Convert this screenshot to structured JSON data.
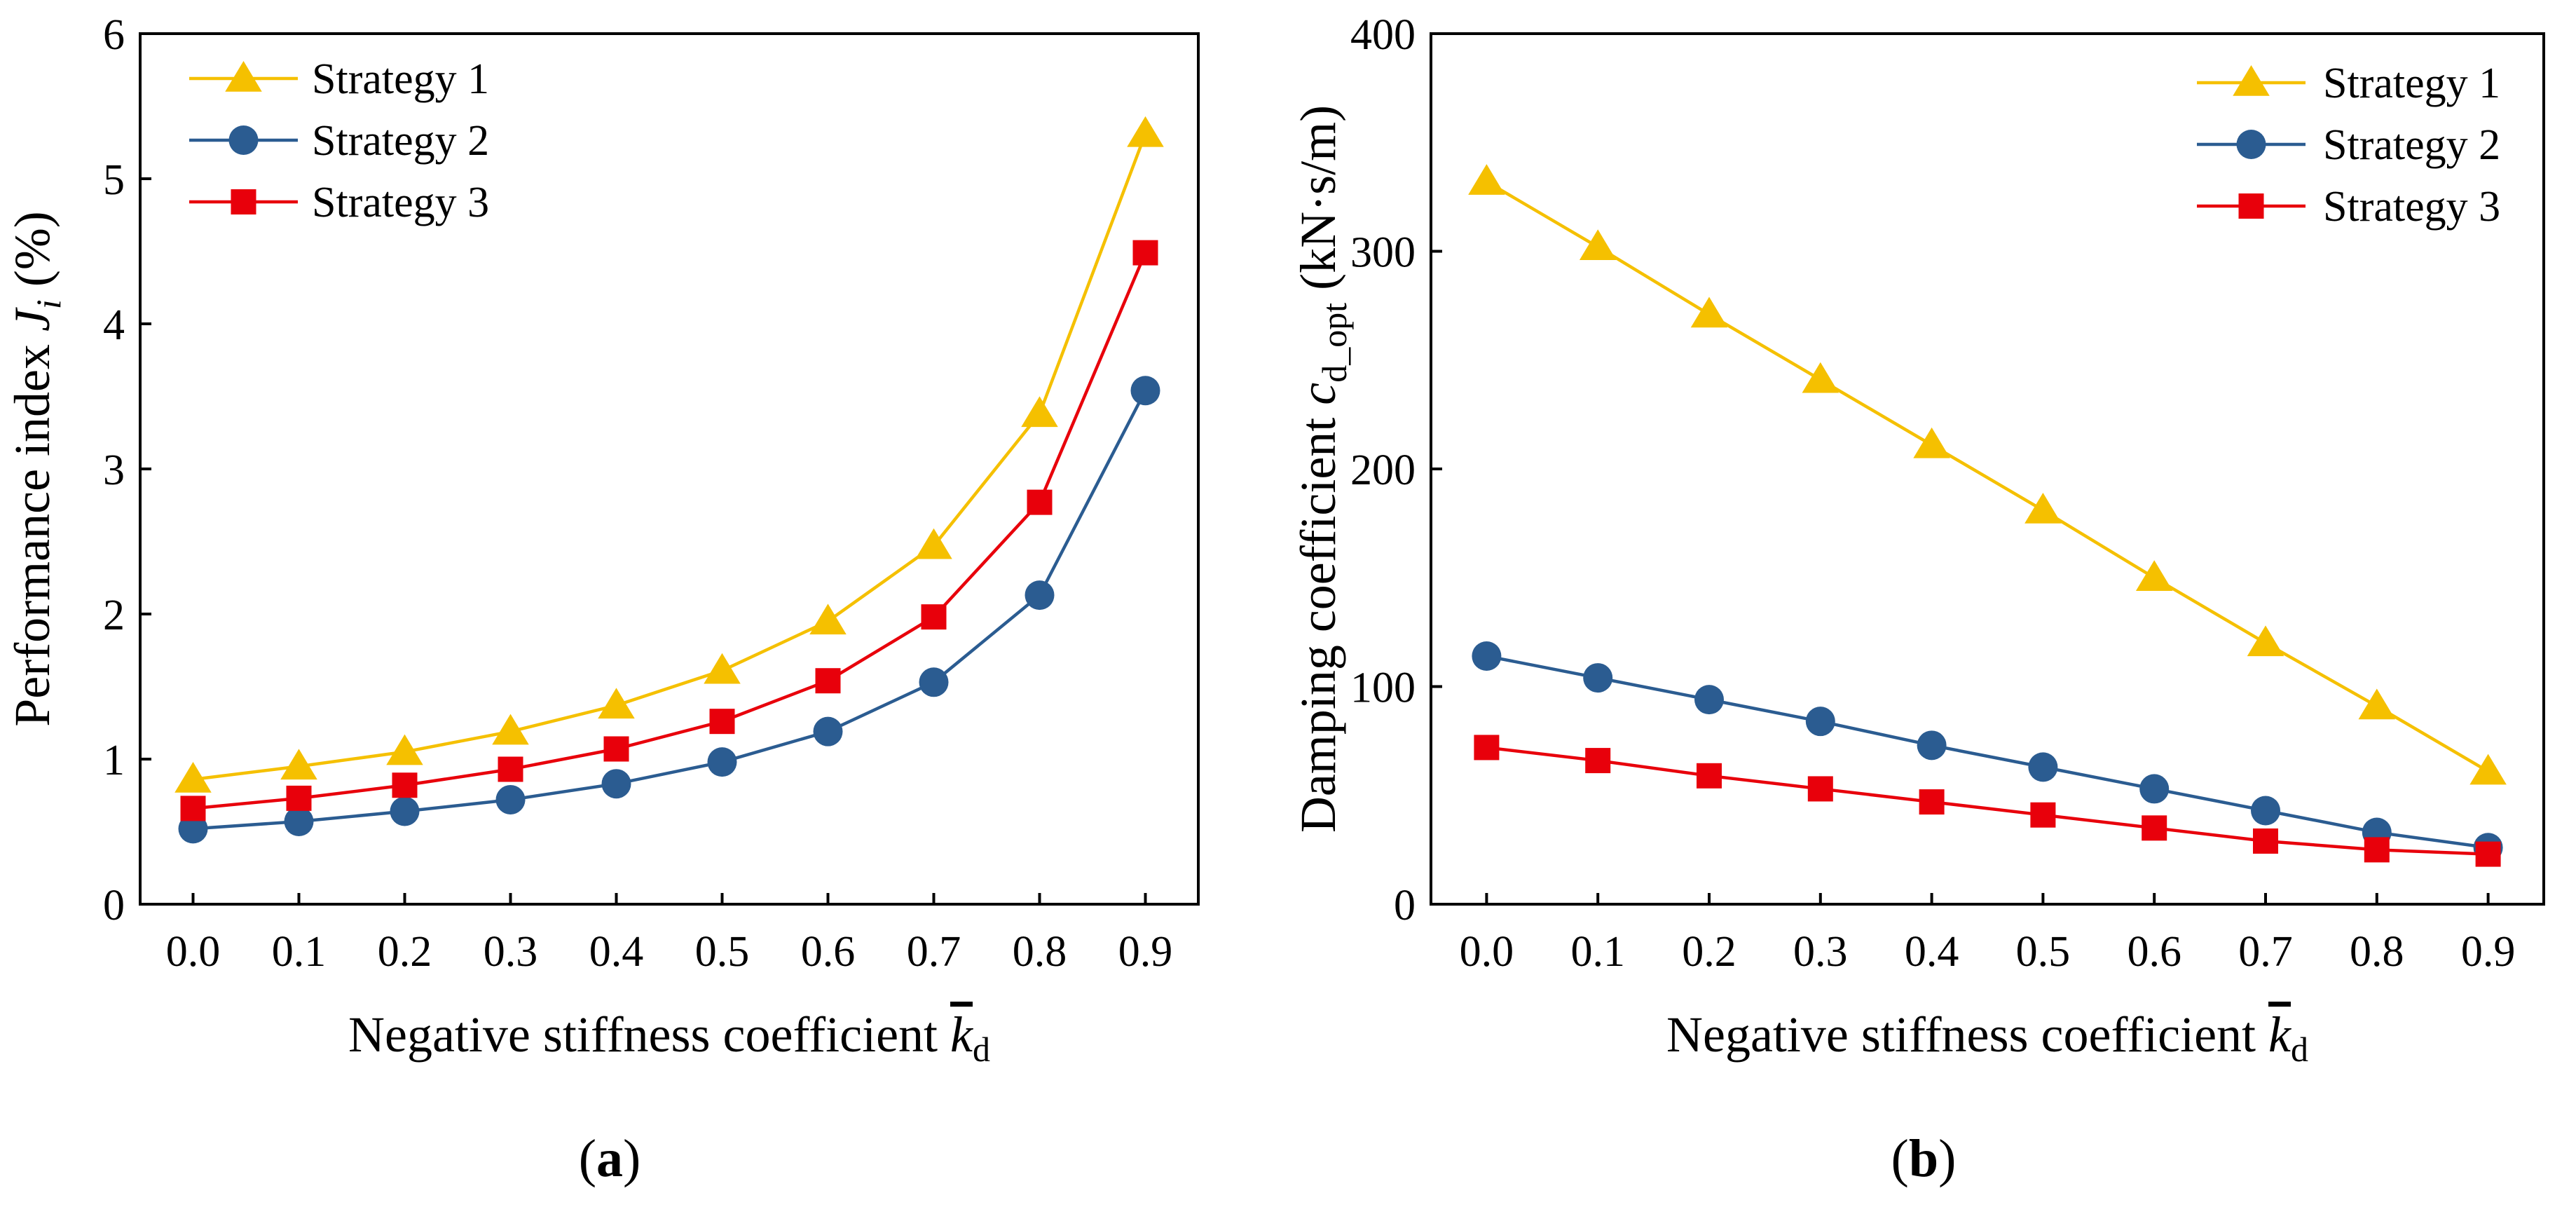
{
  "chart_data": [
    {
      "type": "line",
      "panel_label": "(a)",
      "panel_label_letter": "a",
      "title": "",
      "xlabel": "Negative stiffness coefficient",
      "xlabel_symbol": "k",
      "xlabel_subscript": "d",
      "ylabel": "Performance index",
      "ylabel_symbol": "J",
      "ylabel_subscript": "i",
      "ylabel_unit": "(%)",
      "x": [
        0.0,
        0.1,
        0.2,
        0.3,
        0.4,
        0.5,
        0.6,
        0.7,
        0.8,
        0.9
      ],
      "x_tick_labels": [
        "0.0",
        "0.1",
        "0.2",
        "0.3",
        "0.4",
        "0.5",
        "0.6",
        "0.7",
        "0.8",
        "0.9"
      ],
      "xlim": [
        -0.05,
        0.95
      ],
      "ylim": [
        0,
        6
      ],
      "y_ticks": [
        0,
        1,
        2,
        3,
        4,
        5,
        6
      ],
      "y_tick_labels": [
        "0",
        "1",
        "2",
        "3",
        "4",
        "5",
        "6"
      ],
      "legend_position": "top-left",
      "series": [
        {
          "name": "Strategy 1",
          "color": "#F5C000",
          "marker": "triangle",
          "values": [
            0.86,
            0.95,
            1.05,
            1.19,
            1.37,
            1.61,
            1.95,
            2.47,
            3.38,
            5.31
          ]
        },
        {
          "name": "Strategy 2",
          "color": "#2B5C91",
          "marker": "circle",
          "values": [
            0.52,
            0.57,
            0.64,
            0.72,
            0.83,
            0.98,
            1.19,
            1.53,
            2.13,
            3.54
          ]
        },
        {
          "name": "Strategy 3",
          "color": "#E8000B",
          "marker": "square",
          "values": [
            0.66,
            0.73,
            0.82,
            0.93,
            1.07,
            1.26,
            1.54,
            1.98,
            2.77,
            4.49
          ]
        }
      ]
    },
    {
      "type": "line",
      "panel_label": "(b)",
      "panel_label_letter": "b",
      "title": "",
      "xlabel": "Negative stiffness coefficient",
      "xlabel_symbol": "k",
      "xlabel_subscript": "d",
      "ylabel": "Damping coefficient",
      "ylabel_symbol": "c",
      "ylabel_subscript": "d_opt",
      "ylabel_unit": "(kN·s/m)",
      "x": [
        0.0,
        0.1,
        0.2,
        0.3,
        0.4,
        0.5,
        0.6,
        0.7,
        0.8,
        0.9
      ],
      "x_tick_labels": [
        "0.0",
        "0.1",
        "0.2",
        "0.3",
        "0.4",
        "0.5",
        "0.6",
        "0.7",
        "0.8",
        "0.9"
      ],
      "xlim": [
        -0.05,
        0.95
      ],
      "ylim": [
        0,
        400
      ],
      "y_ticks": [
        0,
        100,
        200,
        300,
        400
      ],
      "y_tick_labels": [
        "0",
        "100",
        "200",
        "300",
        "400"
      ],
      "legend_position": "top-right",
      "series": [
        {
          "name": "Strategy 1",
          "color": "#F5C000",
          "marker": "triangle",
          "values": [
            332,
            302,
            271,
            241,
            211,
            181,
            150,
            120,
            91,
            61
          ]
        },
        {
          "name": "Strategy 2",
          "color": "#2B5C91",
          "marker": "circle",
          "values": [
            114,
            104,
            94,
            84,
            73,
            63,
            53,
            43,
            33,
            26
          ]
        },
        {
          "name": "Strategy 3",
          "color": "#E8000B",
          "marker": "square",
          "values": [
            72,
            66,
            59,
            53,
            47,
            41,
            35,
            29,
            25,
            23
          ]
        }
      ]
    }
  ]
}
